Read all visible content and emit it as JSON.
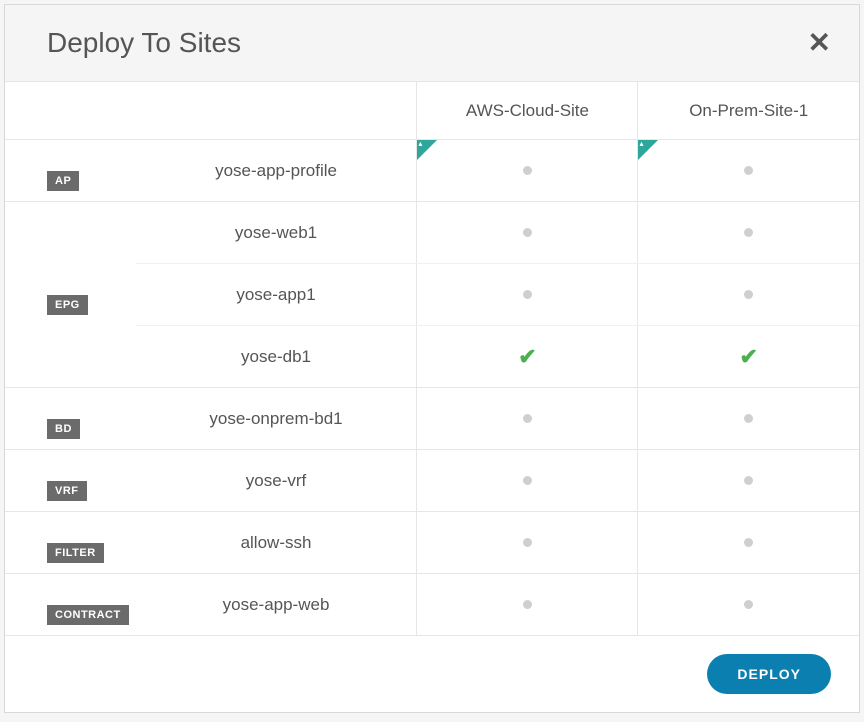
{
  "title": "Deploy To Sites",
  "deploy_label": "DEPLOY",
  "columns": [
    "AWS-Cloud-Site",
    "On-Prem-Site-1"
  ],
  "column_has_flag": [
    true,
    true
  ],
  "groups": [
    {
      "tag": "AP",
      "rows": [
        {
          "name": "yose-app-profile",
          "status": [
            "dot",
            "dot"
          ]
        }
      ]
    },
    {
      "tag": "EPG",
      "rows": [
        {
          "name": "yose-web1",
          "status": [
            "dot",
            "dot"
          ]
        },
        {
          "name": "yose-app1",
          "status": [
            "dot",
            "dot"
          ]
        },
        {
          "name": "yose-db1",
          "status": [
            "check",
            "check"
          ]
        }
      ]
    },
    {
      "tag": "BD",
      "rows": [
        {
          "name": "yose-onprem-bd1",
          "status": [
            "dot",
            "dot"
          ]
        }
      ]
    },
    {
      "tag": "VRF",
      "rows": [
        {
          "name": "yose-vrf",
          "status": [
            "dot",
            "dot"
          ]
        }
      ]
    },
    {
      "tag": "FILTER",
      "rows": [
        {
          "name": "allow-ssh",
          "status": [
            "dot",
            "dot"
          ]
        }
      ]
    },
    {
      "tag": "CONTRACT",
      "rows": [
        {
          "name": "yose-app-web",
          "status": [
            "dot",
            "dot"
          ]
        }
      ]
    }
  ],
  "colors": {
    "accent": "#0a7fb0",
    "flag": "#2fa69a",
    "check": "#4cb050",
    "dot": "#cfcfcf",
    "badge_bg": "#6b6b6b",
    "border": "#e6e6e6",
    "text": "#555555",
    "header_bg": "#f5f5f5"
  }
}
